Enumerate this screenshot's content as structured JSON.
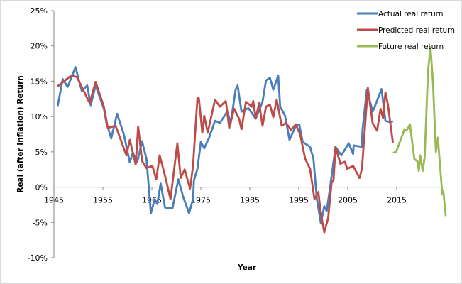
{
  "chart_data": {
    "type": "line",
    "title": "",
    "xlabel": "Year",
    "ylabel": "Real (after Inflation) Return",
    "xlim": [
      1945,
      2025
    ],
    "ylim": [
      -10,
      25
    ],
    "x_ticks": [
      "1945",
      "1955",
      "1965",
      "1975",
      "1985",
      "1995",
      "2005",
      "2015"
    ],
    "y_ticks": [
      "25%",
      "20%",
      "15%",
      "10%",
      "5%",
      "0%",
      "-5%",
      "-10%"
    ],
    "grid": false,
    "legend_position": "top-right",
    "series": [
      {
        "name": "Actual real return",
        "color": "#4a7ebb",
        "points": [
          [
            1945.8,
            11.6
          ],
          [
            1946.8,
            15.3
          ],
          [
            1947.8,
            14.2
          ],
          [
            1949.4,
            17
          ],
          [
            1950.7,
            13.6
          ],
          [
            1951.8,
            14.4
          ],
          [
            1952.5,
            11.6
          ],
          [
            1953.5,
            14.4
          ],
          [
            1955.2,
            11.1
          ],
          [
            1955.7,
            9.2
          ],
          [
            1956.7,
            6.9
          ],
          [
            1957.9,
            10.4
          ],
          [
            1959.3,
            7.4
          ],
          [
            1960.5,
            3.5
          ],
          [
            1961.1,
            4.9
          ],
          [
            1962,
            3.5
          ],
          [
            1963,
            6.5
          ],
          [
            1963.9,
            4
          ],
          [
            1964.8,
            -3.7
          ],
          [
            1965.6,
            -1.7
          ],
          [
            1966.1,
            -2.4
          ],
          [
            1966.8,
            0.5
          ],
          [
            1967.7,
            -2.9
          ],
          [
            1969.2,
            -3
          ],
          [
            1970.4,
            1.1
          ],
          [
            1971.4,
            -1.4
          ],
          [
            1972.6,
            -3.7
          ],
          [
            1973.4,
            -1.7
          ],
          [
            1973.6,
            1
          ],
          [
            1974.3,
            2.6
          ],
          [
            1975,
            6.4
          ],
          [
            1975.7,
            5.5
          ],
          [
            1976.7,
            7
          ],
          [
            1977.9,
            9.4
          ],
          [
            1978.9,
            9.1
          ],
          [
            1980.4,
            10.7
          ],
          [
            1981.1,
            9.1
          ],
          [
            1982.1,
            13.8
          ],
          [
            1982.5,
            14.4
          ],
          [
            1983.3,
            10.7
          ],
          [
            1984.7,
            11.2
          ],
          [
            1986.2,
            9.7
          ],
          [
            1987.6,
            12.1
          ],
          [
            1988.3,
            15.1
          ],
          [
            1989.1,
            15.5
          ],
          [
            1989.8,
            13.8
          ],
          [
            1990.8,
            15.8
          ],
          [
            1991.2,
            11.4
          ],
          [
            1992.2,
            10.1
          ],
          [
            1993.1,
            6.7
          ],
          [
            1994.4,
            8.7
          ],
          [
            1995.1,
            8.9
          ],
          [
            1995.8,
            6.4
          ],
          [
            1997.3,
            5.7
          ],
          [
            1998,
            4
          ],
          [
            1998.7,
            -1.7
          ],
          [
            1999.5,
            -5.1
          ],
          [
            2000.2,
            -2.7
          ],
          [
            2000.7,
            -3.4
          ],
          [
            2001.4,
            0
          ],
          [
            2002.5,
            5.7
          ],
          [
            2003.7,
            4.5
          ],
          [
            2005.2,
            6.2
          ],
          [
            2006.1,
            4.7
          ],
          [
            2006.2,
            5.9
          ],
          [
            2007.9,
            5.7
          ],
          [
            2008,
            8
          ],
          [
            2008.9,
            13.8
          ],
          [
            2010.1,
            10.7
          ],
          [
            2010.8,
            11.9
          ],
          [
            2011.9,
            13.9
          ],
          [
            2012.7,
            9.4
          ],
          [
            2013.7,
            9.2
          ],
          [
            2014.1,
            9.3
          ]
        ]
      },
      {
        "name": "Predicted real return",
        "color": "#be4b48",
        "points": [
          [
            1945.8,
            14.3
          ],
          [
            1948.5,
            15.8
          ],
          [
            1949.7,
            15.6
          ],
          [
            1952.3,
            11.9
          ],
          [
            1953.5,
            14.9
          ],
          [
            1955.2,
            11.4
          ],
          [
            1956,
            8.4
          ],
          [
            1957.6,
            8.7
          ],
          [
            1959.8,
            4.5
          ],
          [
            1960.5,
            6.7
          ],
          [
            1961.7,
            3.2
          ],
          [
            1962.2,
            8.6
          ],
          [
            1963,
            3.7
          ],
          [
            1963.9,
            2.7
          ],
          [
            1965.1,
            3
          ],
          [
            1965.9,
            1.1
          ],
          [
            1966.6,
            4.5
          ],
          [
            1967.8,
            1.3
          ],
          [
            1968.8,
            -1.7
          ],
          [
            1970.2,
            6.2
          ],
          [
            1970.9,
            1.3
          ],
          [
            1971.7,
            2.5
          ],
          [
            1972.8,
            -0.2
          ],
          [
            1973.4,
            3
          ],
          [
            1974.3,
            12.6
          ],
          [
            1974.6,
            12.6
          ],
          [
            1975.3,
            7.7
          ],
          [
            1975.7,
            10.1
          ],
          [
            1976.4,
            7.7
          ],
          [
            1977.9,
            12.4
          ],
          [
            1978.9,
            11.4
          ],
          [
            1980.1,
            12.2
          ],
          [
            1980.8,
            8.4
          ],
          [
            1981.8,
            11.1
          ],
          [
            1982.8,
            9.7
          ],
          [
            1983.3,
            8.2
          ],
          [
            1984.2,
            12.1
          ],
          [
            1985.4,
            11.4
          ],
          [
            1985.7,
            12.2
          ],
          [
            1986.2,
            9.7
          ],
          [
            1986.9,
            11.9
          ],
          [
            1987.6,
            8.7
          ],
          [
            1988.3,
            11.4
          ],
          [
            1989.1,
            11.7
          ],
          [
            1989.8,
            9.9
          ],
          [
            1990.5,
            12.4
          ],
          [
            1991.5,
            8.7
          ],
          [
            1992.4,
            9.1
          ],
          [
            1993.4,
            8.1
          ],
          [
            1994.4,
            8.9
          ],
          [
            1995.3,
            7.4
          ],
          [
            1996.3,
            4
          ],
          [
            1997.3,
            2.6
          ],
          [
            1998.2,
            -1.7
          ],
          [
            1999,
            -0.7
          ],
          [
            1999.5,
            -3.7
          ],
          [
            2000.2,
            -6.4
          ],
          [
            2001,
            -4.4
          ],
          [
            2001.7,
            0.6
          ],
          [
            2002.1,
            1
          ],
          [
            2002.5,
            5.7
          ],
          [
            2003.5,
            3.3
          ],
          [
            2004.4,
            3.6
          ],
          [
            2004.9,
            2.6
          ],
          [
            2006.1,
            3
          ],
          [
            2007.4,
            1.3
          ],
          [
            2007.9,
            2.6
          ],
          [
            2009.1,
            14.1
          ],
          [
            2010.1,
            9
          ],
          [
            2011,
            8
          ],
          [
            2011.7,
            11.1
          ],
          [
            2012.2,
            9.8
          ],
          [
            2012.7,
            13.4
          ],
          [
            2013.2,
            11.7
          ],
          [
            2014.2,
            6.4
          ]
        ]
      },
      {
        "name": "Future real return",
        "color": "#98b954",
        "points": [
          [
            2014.4,
            4.9
          ],
          [
            2014.9,
            5
          ],
          [
            2016.6,
            8.2
          ],
          [
            2017,
            8
          ],
          [
            2017.7,
            8.9
          ],
          [
            2018.6,
            4
          ],
          [
            2019.3,
            3.6
          ],
          [
            2019.5,
            2.3
          ],
          [
            2019.8,
            4.5
          ],
          [
            2020.3,
            2.3
          ],
          [
            2020.7,
            4.2
          ],
          [
            2021.4,
            16.5
          ],
          [
            2021.9,
            19.8
          ],
          [
            2022.4,
            14.8
          ],
          [
            2023,
            5
          ],
          [
            2023.4,
            7
          ],
          [
            2024.3,
            -1
          ],
          [
            2024.5,
            -0.5
          ],
          [
            2025,
            -4
          ]
        ]
      }
    ]
  }
}
